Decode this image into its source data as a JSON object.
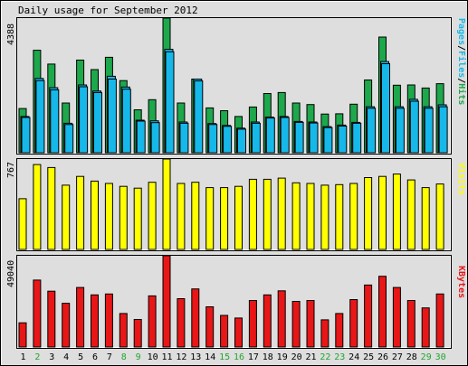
{
  "title": "Daily usage for September 2012",
  "colors": {
    "background": "#dedede",
    "frame": "#ffffff",
    "hits": "#1da84b",
    "files": "#16b8e9",
    "visits": "#ffff00",
    "kbytes": "#e81616",
    "weekday_label": "#000000",
    "weekend_label": "#21a62f"
  },
  "chart_data": [
    {
      "type": "bar",
      "panel": "pages-files-hits",
      "max_label": "4388",
      "ylim": [
        0,
        4388
      ],
      "legend": [
        {
          "text": "Pages",
          "color": "#16b8e9"
        },
        {
          "text": "/",
          "color": "#000000"
        },
        {
          "text": "Files",
          "color": "#16b8e9"
        },
        {
          "text": "/",
          "color": "#000000"
        },
        {
          "text": "Hits",
          "color": "#1da84b"
        }
      ],
      "categories": [
        "1",
        "2",
        "3",
        "4",
        "5",
        "6",
        "7",
        "8",
        "9",
        "10",
        "11",
        "12",
        "13",
        "14",
        "15",
        "16",
        "17",
        "18",
        "19",
        "20",
        "21",
        "22",
        "23",
        "24",
        "25",
        "26",
        "27",
        "28",
        "29",
        "30"
      ],
      "series": [
        {
          "name": "Hits",
          "values": [
            1440,
            3340,
            2890,
            1620,
            3020,
            2710,
            3110,
            2350,
            1400,
            1730,
            4388,
            1620,
            2400,
            1460,
            1370,
            1180,
            1490,
            1930,
            1960,
            1620,
            1570,
            1260,
            1270,
            1580,
            2370,
            3770,
            2200,
            2210,
            2110,
            2250
          ]
        },
        {
          "name": "Files",
          "values": [
            1180,
            2420,
            2120,
            960,
            2210,
            2010,
            2490,
            2140,
            1060,
            1040,
            3370,
            1000,
            2400,
            950,
            890,
            800,
            1000,
            1160,
            1180,
            1020,
            1000,
            850,
            900,
            990,
            1500,
            2970,
            1500,
            1740,
            1500,
            1560
          ]
        },
        {
          "name": "Pages",
          "values": [
            1150,
            2350,
            2050,
            920,
            2150,
            1960,
            2400,
            2070,
            1030,
            980,
            3290,
            960,
            2340,
            920,
            860,
            770,
            960,
            1130,
            1150,
            990,
            970,
            820,
            870,
            960,
            1450,
            2900,
            1450,
            1680,
            1450,
            1500
          ]
        }
      ]
    },
    {
      "type": "bar",
      "panel": "visits",
      "max_label": "767",
      "ylim": [
        0,
        767
      ],
      "legend": [
        {
          "text": "Visits",
          "color": "#ffff00"
        }
      ],
      "categories": [
        "1",
        "2",
        "3",
        "4",
        "5",
        "6",
        "7",
        "8",
        "9",
        "10",
        "11",
        "12",
        "13",
        "14",
        "15",
        "16",
        "17",
        "18",
        "19",
        "20",
        "21",
        "22",
        "23",
        "24",
        "25",
        "26",
        "27",
        "28",
        "29",
        "30"
      ],
      "series": [
        {
          "name": "Visits",
          "values": [
            430,
            720,
            695,
            545,
            620,
            580,
            560,
            535,
            520,
            570,
            767,
            560,
            570,
            525,
            525,
            535,
            595,
            595,
            605,
            565,
            560,
            545,
            550,
            560,
            610,
            620,
            640,
            590,
            525,
            555
          ]
        }
      ]
    },
    {
      "type": "bar",
      "panel": "kbytes",
      "max_label": "49040",
      "ylim": [
        0,
        49040
      ],
      "legend": [
        {
          "text": "KBytes",
          "color": "#e81616"
        }
      ],
      "categories": [
        "1",
        "2",
        "3",
        "4",
        "5",
        "6",
        "7",
        "8",
        "9",
        "10",
        "11",
        "12",
        "13",
        "14",
        "15",
        "16",
        "17",
        "18",
        "19",
        "20",
        "21",
        "22",
        "23",
        "24",
        "25",
        "26",
        "27",
        "28",
        "29",
        "30"
      ],
      "series": [
        {
          "name": "KBytes",
          "values": [
            13000,
            36000,
            30000,
            23500,
            32000,
            28000,
            28500,
            18000,
            14800,
            27500,
            49040,
            26000,
            31200,
            21600,
            17000,
            15600,
            25000,
            28000,
            30200,
            24500,
            25000,
            14600,
            18000,
            25500,
            33300,
            38000,
            32000,
            25000,
            21000,
            28500
          ]
        }
      ]
    }
  ],
  "day_labels": [
    {
      "text": "1",
      "weekend": false
    },
    {
      "text": "2",
      "weekend": true
    },
    {
      "text": "3",
      "weekend": false
    },
    {
      "text": "4",
      "weekend": false
    },
    {
      "text": "5",
      "weekend": false
    },
    {
      "text": "6",
      "weekend": false
    },
    {
      "text": "7",
      "weekend": false
    },
    {
      "text": "8",
      "weekend": true
    },
    {
      "text": "9",
      "weekend": true
    },
    {
      "text": "10",
      "weekend": false
    },
    {
      "text": "11",
      "weekend": false
    },
    {
      "text": "12",
      "weekend": false
    },
    {
      "text": "13",
      "weekend": false
    },
    {
      "text": "14",
      "weekend": false
    },
    {
      "text": "15",
      "weekend": true
    },
    {
      "text": "16",
      "weekend": true
    },
    {
      "text": "17",
      "weekend": false
    },
    {
      "text": "18",
      "weekend": false
    },
    {
      "text": "19",
      "weekend": false
    },
    {
      "text": "20",
      "weekend": false
    },
    {
      "text": "21",
      "weekend": false
    },
    {
      "text": "22",
      "weekend": true
    },
    {
      "text": "23",
      "weekend": true
    },
    {
      "text": "24",
      "weekend": false
    },
    {
      "text": "25",
      "weekend": false
    },
    {
      "text": "26",
      "weekend": false
    },
    {
      "text": "27",
      "weekend": false
    },
    {
      "text": "28",
      "weekend": false
    },
    {
      "text": "29",
      "weekend": true
    },
    {
      "text": "30",
      "weekend": true
    }
  ]
}
